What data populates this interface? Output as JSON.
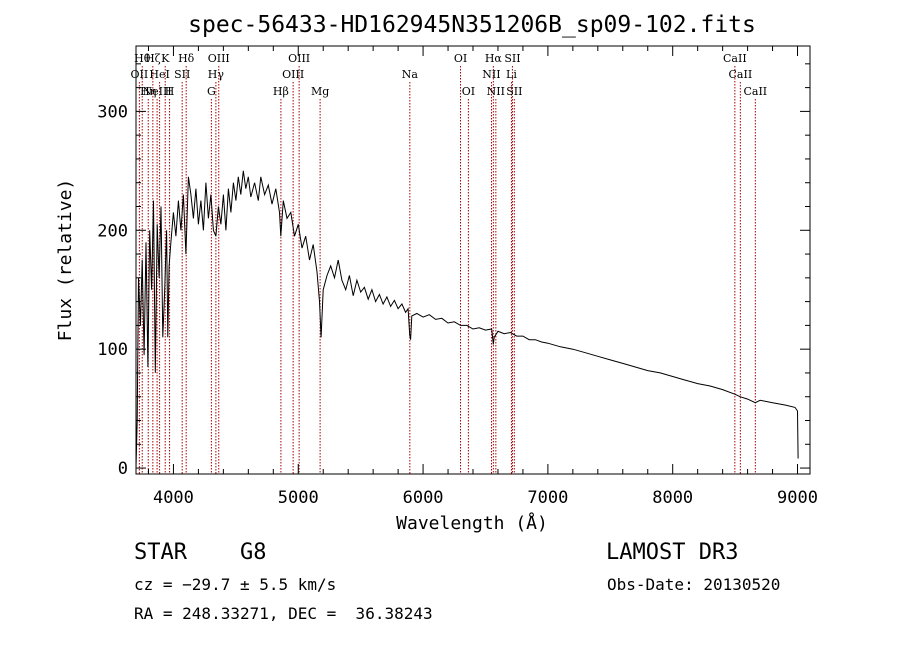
{
  "chart_data": {
    "type": "line",
    "title": "spec-56433-HD162945N351206B_sp09-102.fits",
    "xlabel": "Wavelength (Å)",
    "ylabel": "Flux (relative)",
    "xlim": [
      3700,
      9100
    ],
    "ylim": [
      -5,
      355
    ],
    "x_ticks": [
      4000,
      5000,
      6000,
      7000,
      8000,
      9000
    ],
    "y_ticks": [
      0,
      100,
      200,
      300
    ],
    "line_color": "#000000",
    "marker_color": "#aa0000",
    "spectrum": [
      [
        3700,
        0
      ],
      [
        3710,
        40
      ],
      [
        3720,
        160
      ],
      [
        3735,
        120
      ],
      [
        3750,
        175
      ],
      [
        3765,
        95
      ],
      [
        3780,
        190
      ],
      [
        3795,
        85
      ],
      [
        3810,
        200
      ],
      [
        3825,
        150
      ],
      [
        3840,
        225
      ],
      [
        3855,
        80
      ],
      [
        3870,
        205
      ],
      [
        3885,
        160
      ],
      [
        3900,
        220
      ],
      [
        3915,
        110
      ],
      [
        3930,
        150
      ],
      [
        3945,
        200
      ],
      [
        3955,
        110
      ],
      [
        3965,
        170
      ],
      [
        3980,
        190
      ],
      [
        4000,
        215
      ],
      [
        4020,
        195
      ],
      [
        4040,
        225
      ],
      [
        4060,
        200
      ],
      [
        4080,
        230
      ],
      [
        4100,
        180
      ],
      [
        4120,
        245
      ],
      [
        4140,
        230
      ],
      [
        4160,
        210
      ],
      [
        4180,
        235
      ],
      [
        4200,
        205
      ],
      [
        4220,
        225
      ],
      [
        4240,
        200
      ],
      [
        4260,
        240
      ],
      [
        4280,
        210
      ],
      [
        4300,
        230
      ],
      [
        4320,
        200
      ],
      [
        4340,
        195
      ],
      [
        4360,
        220
      ],
      [
        4380,
        205
      ],
      [
        4400,
        230
      ],
      [
        4420,
        200
      ],
      [
        4440,
        235
      ],
      [
        4460,
        215
      ],
      [
        4480,
        240
      ],
      [
        4500,
        225
      ],
      [
        4520,
        245
      ],
      [
        4540,
        230
      ],
      [
        4560,
        250
      ],
      [
        4580,
        235
      ],
      [
        4600,
        245
      ],
      [
        4620,
        228
      ],
      [
        4650,
        240
      ],
      [
        4680,
        225
      ],
      [
        4700,
        245
      ],
      [
        4730,
        230
      ],
      [
        4760,
        238
      ],
      [
        4790,
        222
      ],
      [
        4820,
        235
      ],
      [
        4850,
        215
      ],
      [
        4860,
        195
      ],
      [
        4880,
        225
      ],
      [
        4910,
        210
      ],
      [
        4940,
        215
      ],
      [
        4970,
        195
      ],
      [
        5000,
        205
      ],
      [
        5030,
        185
      ],
      [
        5060,
        195
      ],
      [
        5090,
        175
      ],
      [
        5120,
        188
      ],
      [
        5150,
        165
      ],
      [
        5170,
        140
      ],
      [
        5183,
        110
      ],
      [
        5200,
        150
      ],
      [
        5230,
        162
      ],
      [
        5260,
        170
      ],
      [
        5290,
        160
      ],
      [
        5320,
        175
      ],
      [
        5350,
        158
      ],
      [
        5380,
        150
      ],
      [
        5410,
        162
      ],
      [
        5440,
        145
      ],
      [
        5470,
        158
      ],
      [
        5500,
        148
      ],
      [
        5530,
        152
      ],
      [
        5560,
        142
      ],
      [
        5590,
        150
      ],
      [
        5620,
        140
      ],
      [
        5650,
        146
      ],
      [
        5680,
        138
      ],
      [
        5710,
        144
      ],
      [
        5740,
        136
      ],
      [
        5770,
        141
      ],
      [
        5800,
        134
      ],
      [
        5830,
        138
      ],
      [
        5860,
        131
      ],
      [
        5880,
        134
      ],
      [
        5893,
        112
      ],
      [
        5900,
        108
      ],
      [
        5910,
        128
      ],
      [
        5950,
        130
      ],
      [
        6000,
        127
      ],
      [
        6050,
        129
      ],
      [
        6100,
        125
      ],
      [
        6150,
        126
      ],
      [
        6200,
        122
      ],
      [
        6250,
        123
      ],
      [
        6300,
        120
      ],
      [
        6350,
        120
      ],
      [
        6400,
        117
      ],
      [
        6450,
        118
      ],
      [
        6500,
        116
      ],
      [
        6550,
        117
      ],
      [
        6563,
        104
      ],
      [
        6570,
        110
      ],
      [
        6600,
        115
      ],
      [
        6650,
        113
      ],
      [
        6700,
        114
      ],
      [
        6750,
        111
      ],
      [
        6800,
        111
      ],
      [
        6850,
        108
      ],
      [
        6900,
        108
      ],
      [
        6950,
        106
      ],
      [
        7000,
        105
      ],
      [
        7100,
        102
      ],
      [
        7200,
        100
      ],
      [
        7300,
        97
      ],
      [
        7400,
        94
      ],
      [
        7500,
        91
      ],
      [
        7600,
        88
      ],
      [
        7700,
        85
      ],
      [
        7800,
        82
      ],
      [
        7900,
        80
      ],
      [
        8000,
        77
      ],
      [
        8100,
        74
      ],
      [
        8200,
        71
      ],
      [
        8300,
        69
      ],
      [
        8400,
        66
      ],
      [
        8500,
        62
      ],
      [
        8540,
        60
      ],
      [
        8600,
        58
      ],
      [
        8662,
        55
      ],
      [
        8700,
        57
      ],
      [
        8800,
        55
      ],
      [
        8900,
        53
      ],
      [
        8980,
        51
      ],
      [
        9000,
        48
      ],
      [
        9005,
        8
      ]
    ],
    "lines": [
      {
        "wl": 3727,
        "name": "OII",
        "row": 1
      },
      {
        "wl": 3750,
        "name": "Hθ",
        "row": 0
      },
      {
        "wl": 3798,
        "name": "Hη",
        "row": 2
      },
      {
        "wl": 3835,
        "name": "Hζ",
        "row": 0
      },
      {
        "wl": 3869,
        "name": "NeIII",
        "row": 2
      },
      {
        "wl": 3889,
        "name": "HeI",
        "row": 1
      },
      {
        "wl": 3934,
        "name": "K",
        "row": 0
      },
      {
        "wl": 3969,
        "name": "H",
        "row": 2
      },
      {
        "wl": 4070,
        "name": "SII",
        "row": 1
      },
      {
        "wl": 4102,
        "name": "Hδ",
        "row": 0
      },
      {
        "wl": 4304,
        "name": "G",
        "row": 2
      },
      {
        "wl": 4340,
        "name": "Hγ",
        "row": 1
      },
      {
        "wl": 4363,
        "name": "OIII",
        "row": 0
      },
      {
        "wl": 4861,
        "name": "Hβ",
        "row": 2
      },
      {
        "wl": 4959,
        "name": "OIII",
        "row": 1
      },
      {
        "wl": 5007,
        "name": "OIII",
        "row": 0
      },
      {
        "wl": 5175,
        "name": "Mg",
        "row": 2
      },
      {
        "wl": 5894,
        "name": "Na",
        "row": 1
      },
      {
        "wl": 6300,
        "name": "OI",
        "row": 0
      },
      {
        "wl": 6363,
        "name": "OI",
        "row": 2
      },
      {
        "wl": 6548,
        "name": "NII",
        "row": 1
      },
      {
        "wl": 6563,
        "name": "Hα",
        "row": 0
      },
      {
        "wl": 6583,
        "name": "NII",
        "row": 2
      },
      {
        "wl": 6708,
        "name": "Li",
        "row": 1
      },
      {
        "wl": 6716,
        "name": "SII",
        "row": 0
      },
      {
        "wl": 6731,
        "name": "SII",
        "row": 2
      },
      {
        "wl": 8498,
        "name": "CaII",
        "row": 0
      },
      {
        "wl": 8542,
        "name": "CaII",
        "row": 1
      },
      {
        "wl": 8662,
        "name": "CaII",
        "row": 2
      }
    ]
  },
  "info": {
    "object_type": "STAR",
    "subclass": "G8",
    "survey": "LAMOST DR3",
    "redshift_line": "cz = −29.7 ± 5.5 km/s",
    "obs_date": "Obs-Date: 20130520",
    "coords": "RA = 248.33271, DEC =  36.38243"
  }
}
